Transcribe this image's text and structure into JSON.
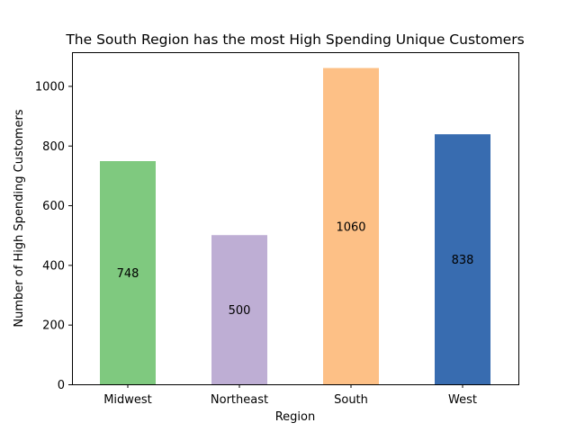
{
  "chart_data": {
    "type": "bar",
    "title": "The South Region has the most High Spending Unique Customers",
    "xlabel": "Region",
    "ylabel": "Number of High Spending Customers",
    "categories": [
      "Midwest",
      "Northeast",
      "South",
      "West"
    ],
    "values": [
      748,
      500,
      1060,
      838
    ],
    "data_labels": [
      "748",
      "500",
      "1060",
      "838"
    ],
    "colors": [
      "#7fc97f",
      "#beaed4",
      "#fdc086",
      "#386cb0"
    ],
    "ylim": [
      0,
      1113
    ],
    "yticks": [
      0,
      200,
      400,
      600,
      800,
      1000
    ],
    "ytick_labels": [
      "0",
      "200",
      "400",
      "600",
      "800",
      "1000"
    ],
    "grid": false,
    "legend": "none"
  }
}
